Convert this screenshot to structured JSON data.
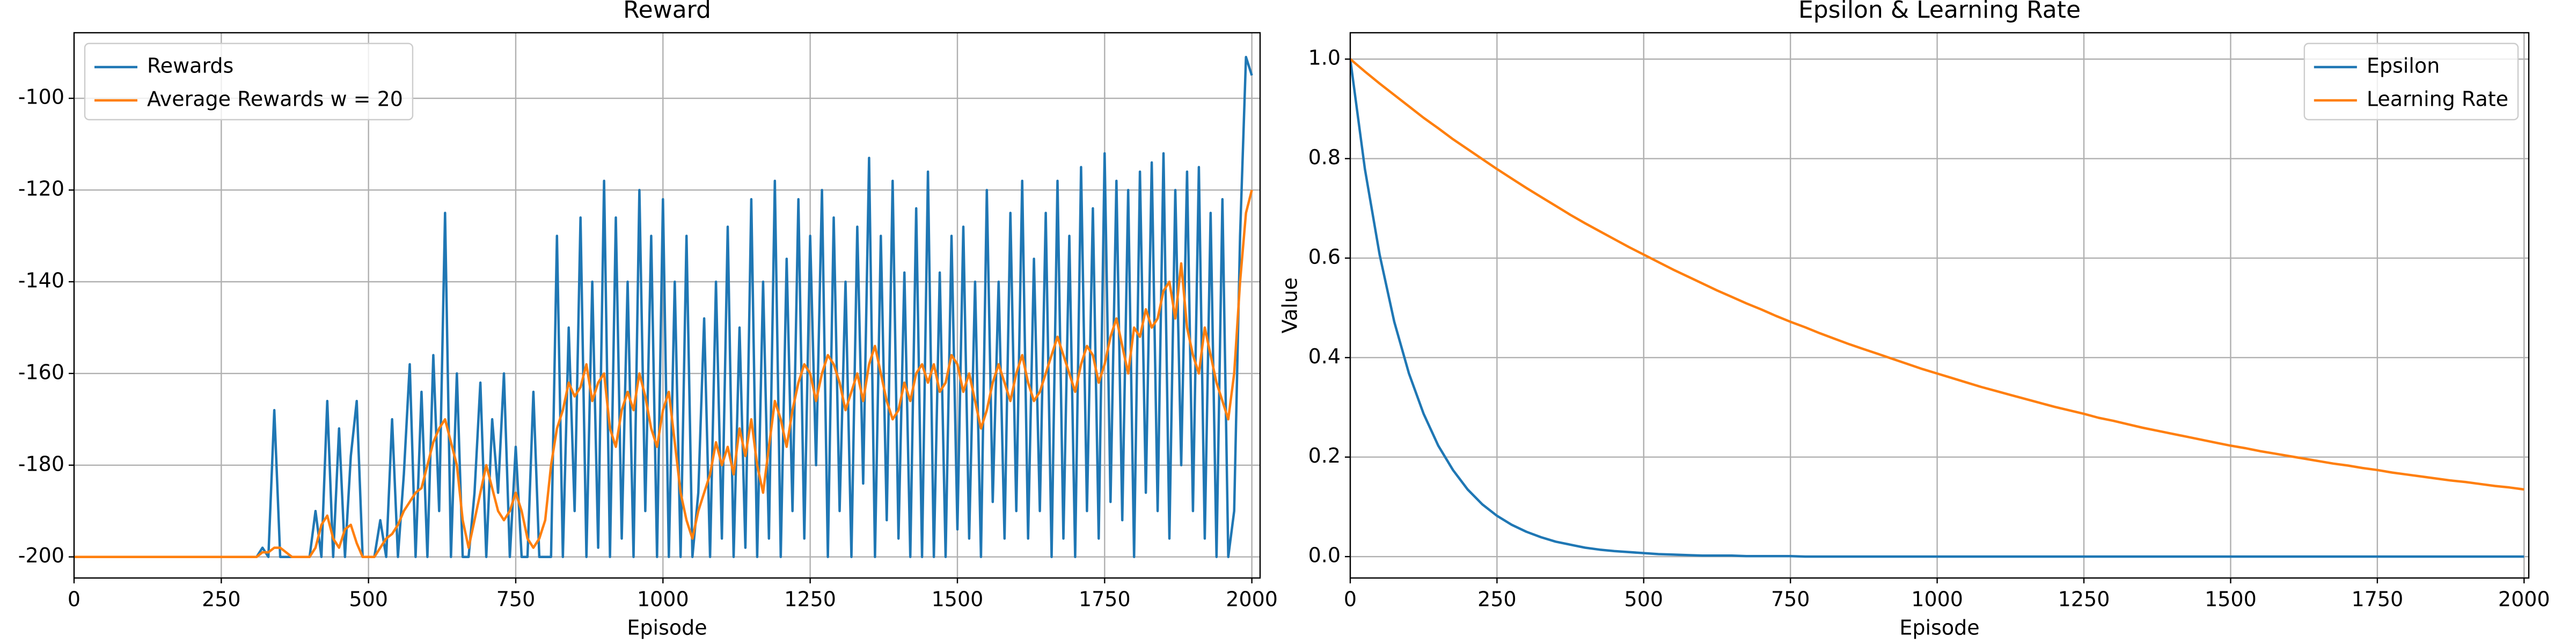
{
  "chart_data": [
    {
      "type": "line",
      "title": "Reward",
      "xlabel": "Episode",
      "legend": "upper left",
      "grid": true,
      "xlim": [
        0,
        2014
      ],
      "xticks": [
        0,
        250,
        500,
        750,
        1000,
        1250,
        1500,
        1750,
        2000
      ],
      "ylim": [
        -204.6,
        -85.7
      ],
      "yticks": [
        -200,
        -180,
        -160,
        -140,
        -120,
        -100
      ],
      "x": [
        0,
        10,
        20,
        30,
        40,
        50,
        60,
        70,
        80,
        90,
        100,
        110,
        120,
        130,
        140,
        150,
        160,
        170,
        180,
        190,
        200,
        210,
        220,
        230,
        240,
        250,
        260,
        270,
        280,
        290,
        300,
        310,
        320,
        330,
        340,
        350,
        360,
        370,
        380,
        390,
        400,
        410,
        420,
        430,
        440,
        450,
        460,
        470,
        480,
        490,
        500,
        510,
        520,
        530,
        540,
        550,
        560,
        570,
        580,
        590,
        600,
        610,
        620,
        630,
        640,
        650,
        660,
        670,
        680,
        690,
        700,
        710,
        720,
        730,
        740,
        750,
        760,
        770,
        780,
        790,
        800,
        810,
        820,
        830,
        840,
        850,
        860,
        870,
        880,
        890,
        900,
        910,
        920,
        930,
        940,
        950,
        960,
        970,
        980,
        990,
        1000,
        1010,
        1020,
        1030,
        1040,
        1050,
        1060,
        1070,
        1080,
        1090,
        1100,
        1110,
        1120,
        1130,
        1140,
        1150,
        1160,
        1170,
        1180,
        1190,
        1200,
        1210,
        1220,
        1230,
        1240,
        1250,
        1260,
        1270,
        1280,
        1290,
        1300,
        1310,
        1320,
        1330,
        1340,
        1350,
        1360,
        1370,
        1380,
        1390,
        1400,
        1410,
        1420,
        1430,
        1440,
        1450,
        1460,
        1470,
        1480,
        1490,
        1500,
        1510,
        1520,
        1530,
        1540,
        1550,
        1560,
        1570,
        1580,
        1590,
        1600,
        1610,
        1620,
        1630,
        1640,
        1650,
        1660,
        1670,
        1680,
        1690,
        1700,
        1710,
        1720,
        1730,
        1740,
        1750,
        1760,
        1770,
        1780,
        1790,
        1800,
        1810,
        1820,
        1830,
        1840,
        1850,
        1860,
        1870,
        1880,
        1890,
        1900,
        1910,
        1920,
        1930,
        1940,
        1950,
        1960,
        1970,
        1980,
        1990,
        2000
      ],
      "series": [
        {
          "name": "Rewards",
          "color": "#1f77b4",
          "values": [
            -200,
            -200,
            -200,
            -200,
            -200,
            -200,
            -200,
            -200,
            -200,
            -200,
            -200,
            -200,
            -200,
            -200,
            -200,
            -200,
            -200,
            -200,
            -200,
            -200,
            -200,
            -200,
            -200,
            -200,
            -200,
            -200,
            -200,
            -200,
            -200,
            -200,
            -200,
            -200,
            -198,
            -200,
            -168,
            -200,
            -200,
            -200,
            -200,
            -200,
            -200,
            -190,
            -200,
            -166,
            -200,
            -172,
            -200,
            -178,
            -166,
            -200,
            -200,
            -200,
            -192,
            -200,
            -170,
            -200,
            -182,
            -158,
            -200,
            -164,
            -200,
            -156,
            -190,
            -125,
            -200,
            -160,
            -200,
            -200,
            -186,
            -162,
            -200,
            -170,
            -186,
            -160,
            -200,
            -176,
            -200,
            -200,
            -164,
            -200,
            -200,
            -200,
            -130,
            -200,
            -150,
            -190,
            -126,
            -200,
            -140,
            -198,
            -118,
            -200,
            -126,
            -196,
            -140,
            -200,
            -120,
            -190,
            -130,
            -200,
            -122,
            -200,
            -140,
            -200,
            -130,
            -200,
            -186,
            -148,
            -200,
            -140,
            -196,
            -128,
            -200,
            -150,
            -198,
            -122,
            -200,
            -140,
            -196,
            -118,
            -200,
            -135,
            -190,
            -122,
            -196,
            -130,
            -180,
            -120,
            -200,
            -126,
            -190,
            -140,
            -200,
            -128,
            -184,
            -113,
            -200,
            -130,
            -192,
            -118,
            -196,
            -138,
            -200,
            -124,
            -200,
            -116,
            -200,
            -138,
            -200,
            -130,
            -194,
            -128,
            -196,
            -140,
            -200,
            -120,
            -188,
            -140,
            -196,
            -125,
            -190,
            -118,
            -196,
            -135,
            -190,
            -125,
            -200,
            -118,
            -196,
            -130,
            -200,
            -115,
            -190,
            -124,
            -196,
            -112,
            -188,
            -118,
            -192,
            -120,
            -200,
            -116,
            -186,
            -114,
            -190,
            -112,
            -196,
            -120,
            -180,
            -116,
            -190,
            -115,
            -196,
            -125,
            -200,
            -122,
            -200,
            -190,
            -130,
            -91,
            -95
          ]
        },
        {
          "name": "Average Rewards w = 20",
          "color": "#ff7f0e",
          "values": [
            -200,
            -200,
            -200,
            -200,
            -200,
            -200,
            -200,
            -200,
            -200,
            -200,
            -200,
            -200,
            -200,
            -200,
            -200,
            -200,
            -200,
            -200,
            -200,
            -200,
            -200,
            -200,
            -200,
            -200,
            -200,
            -200,
            -200,
            -200,
            -200,
            -200,
            -200,
            -200,
            -199,
            -199,
            -198,
            -198,
            -199,
            -200,
            -200,
            -200,
            -200,
            -198,
            -193,
            -191,
            -196,
            -198,
            -194,
            -193,
            -197,
            -200,
            -200,
            -200,
            -198,
            -196,
            -195,
            -193,
            -190,
            -188,
            -186,
            -185,
            -180,
            -175,
            -172,
            -170,
            -175,
            -180,
            -192,
            -198,
            -192,
            -186,
            -180,
            -185,
            -190,
            -192,
            -190,
            -186,
            -190,
            -196,
            -198,
            -196,
            -192,
            -180,
            -172,
            -168,
            -162,
            -165,
            -163,
            -158,
            -166,
            -162,
            -160,
            -172,
            -176,
            -168,
            -164,
            -168,
            -160,
            -165,
            -172,
            -176,
            -168,
            -164,
            -175,
            -186,
            -192,
            -196,
            -190,
            -186,
            -182,
            -175,
            -180,
            -176,
            -182,
            -172,
            -178,
            -170,
            -180,
            -186,
            -176,
            -166,
            -170,
            -176,
            -168,
            -162,
            -158,
            -160,
            -166,
            -160,
            -156,
            -158,
            -162,
            -168,
            -164,
            -160,
            -166,
            -158,
            -154,
            -160,
            -166,
            -170,
            -168,
            -162,
            -166,
            -160,
            -158,
            -162,
            -158,
            -164,
            -162,
            -156,
            -158,
            -164,
            -160,
            -166,
            -172,
            -168,
            -162,
            -158,
            -162,
            -166,
            -160,
            -156,
            -162,
            -166,
            -164,
            -160,
            -156,
            -152,
            -156,
            -160,
            -164,
            -158,
            -154,
            -156,
            -162,
            -158,
            -152,
            -148,
            -154,
            -160,
            -150,
            -152,
            -146,
            -150,
            -148,
            -142,
            -140,
            -148,
            -136,
            -150,
            -156,
            -160,
            -150,
            -156,
            -162,
            -166,
            -170,
            -160,
            -140,
            -125,
            -120
          ]
        }
      ]
    },
    {
      "type": "line",
      "title": "Epsilon & Learning Rate",
      "xlabel": "Episode",
      "ylabel": "Value",
      "legend": "upper right",
      "grid": true,
      "xlim": [
        0,
        2008
      ],
      "xticks": [
        0,
        250,
        500,
        750,
        1000,
        1250,
        1500,
        1750,
        2000
      ],
      "ylim": [
        -0.043,
        1.053
      ],
      "yticks": [
        {
          "value": 0,
          "label": "0.0"
        },
        0.2,
        0.4,
        0.6,
        0.8,
        {
          "value": 1,
          "label": "1.0"
        }
      ],
      "x": [
        0,
        25,
        50,
        75,
        100,
        125,
        150,
        175,
        200,
        225,
        250,
        275,
        300,
        325,
        350,
        375,
        400,
        425,
        450,
        475,
        500,
        525,
        550,
        575,
        600,
        625,
        650,
        675,
        700,
        725,
        750,
        775,
        800,
        825,
        850,
        875,
        900,
        925,
        950,
        975,
        1000,
        1025,
        1050,
        1075,
        1100,
        1125,
        1150,
        1175,
        1200,
        1225,
        1250,
        1275,
        1300,
        1325,
        1350,
        1375,
        1400,
        1425,
        1450,
        1475,
        1500,
        1525,
        1550,
        1575,
        1600,
        1625,
        1650,
        1675,
        1700,
        1725,
        1750,
        1775,
        1800,
        1825,
        1850,
        1875,
        1900,
        1925,
        1950,
        1975,
        2000
      ],
      "series": [
        {
          "name": "Epsilon",
          "color": "#1f77b4",
          "values": [
            1,
            0.779,
            0.607,
            0.472,
            0.368,
            0.287,
            0.223,
            0.174,
            0.135,
            0.105,
            0.082,
            0.064,
            0.05,
            0.039,
            0.03,
            0.024,
            0.018,
            0.014,
            0.011,
            0.009,
            0.007,
            0.005,
            0.004,
            0.003,
            0.002,
            0.002,
            0.002,
            0.001,
            0.001,
            0.001,
            0.001,
            0,
            0,
            0,
            0,
            0,
            0,
            0,
            0,
            0,
            0,
            0,
            0,
            0,
            0,
            0,
            0,
            0,
            0,
            0,
            0,
            0,
            0,
            0,
            0,
            0,
            0,
            0,
            0,
            0,
            0,
            0,
            0,
            0,
            0,
            0,
            0,
            0,
            0,
            0,
            0,
            0,
            0,
            0,
            0,
            0,
            0,
            0,
            0,
            0,
            0
          ]
        },
        {
          "name": "Learning Rate",
          "color": "#ff7f0e",
          "values": [
            1,
            0.975,
            0.951,
            0.928,
            0.905,
            0.882,
            0.861,
            0.839,
            0.819,
            0.799,
            0.779,
            0.76,
            0.741,
            0.723,
            0.705,
            0.687,
            0.67,
            0.654,
            0.638,
            0.622,
            0.607,
            0.592,
            0.577,
            0.563,
            0.549,
            0.535,
            0.522,
            0.509,
            0.497,
            0.484,
            0.472,
            0.461,
            0.449,
            0.438,
            0.427,
            0.417,
            0.407,
            0.397,
            0.387,
            0.377,
            0.368,
            0.359,
            0.35,
            0.341,
            0.333,
            0.325,
            0.317,
            0.309,
            0.301,
            0.294,
            0.287,
            0.279,
            0.273,
            0.266,
            0.259,
            0.253,
            0.247,
            0.241,
            0.235,
            0.229,
            0.223,
            0.218,
            0.212,
            0.207,
            0.202,
            0.197,
            0.192,
            0.187,
            0.183,
            0.178,
            0.174,
            0.169,
            0.165,
            0.161,
            0.157,
            0.153,
            0.15,
            0.146,
            0.142,
            0.139,
            0.135
          ]
        }
      ]
    }
  ]
}
